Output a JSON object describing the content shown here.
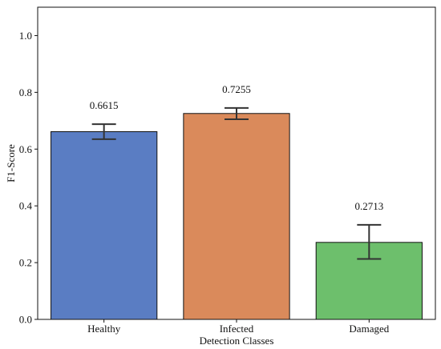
{
  "chart_data": {
    "type": "bar",
    "categories": [
      "Healthy",
      "Infected",
      "Damaged"
    ],
    "values": [
      0.6615,
      0.7255,
      0.2713
    ],
    "value_labels": [
      "0.6615",
      "0.7255",
      "0.2713"
    ],
    "error_bars": [
      {
        "low": 0.635,
        "high": 0.688
      },
      {
        "low": 0.705,
        "high": 0.745
      },
      {
        "low": 0.213,
        "high": 0.333
      }
    ],
    "colors": [
      "#5a7dc3",
      "#da8a5b",
      "#6dbf6c"
    ],
    "title": "",
    "xlabel": "Detection Classes",
    "ylabel": "F1-Score",
    "ylim": [
      0,
      1.1
    ],
    "yticks": [
      0.0,
      0.2,
      0.4,
      0.6,
      0.8,
      1.0
    ],
    "ytick_labels": [
      "0.0",
      "0.2",
      "0.4",
      "0.6",
      "0.8",
      "1.0"
    ],
    "grid": false,
    "legend": "none"
  }
}
